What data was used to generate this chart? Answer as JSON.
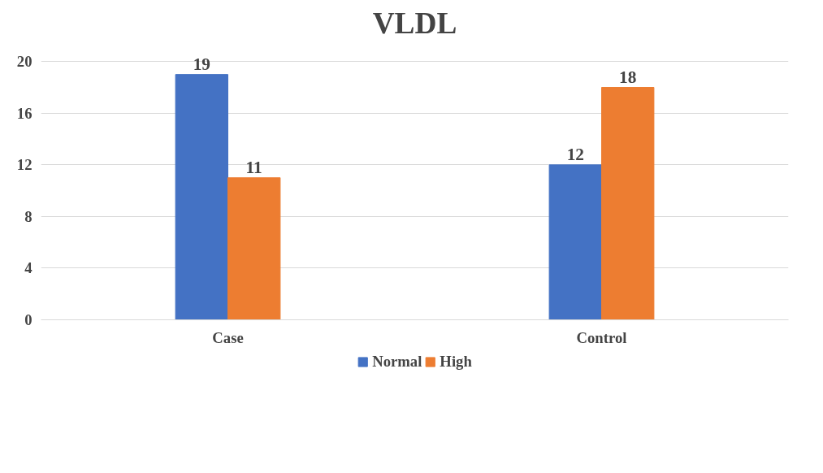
{
  "chart_data": {
    "type": "bar",
    "title": "VLDL",
    "categories": [
      "Case",
      "Control"
    ],
    "series": [
      {
        "name": "Normal",
        "color": "#4472c4",
        "values": [
          19,
          12
        ]
      },
      {
        "name": "High",
        "color": "#ed7d31",
        "values": [
          11,
          18
        ]
      }
    ],
    "ylim": [
      0,
      20
    ],
    "yticks": [
      0,
      4,
      8,
      12,
      16,
      20
    ],
    "grid": "y",
    "legend": "bottom",
    "data_labels": true
  }
}
